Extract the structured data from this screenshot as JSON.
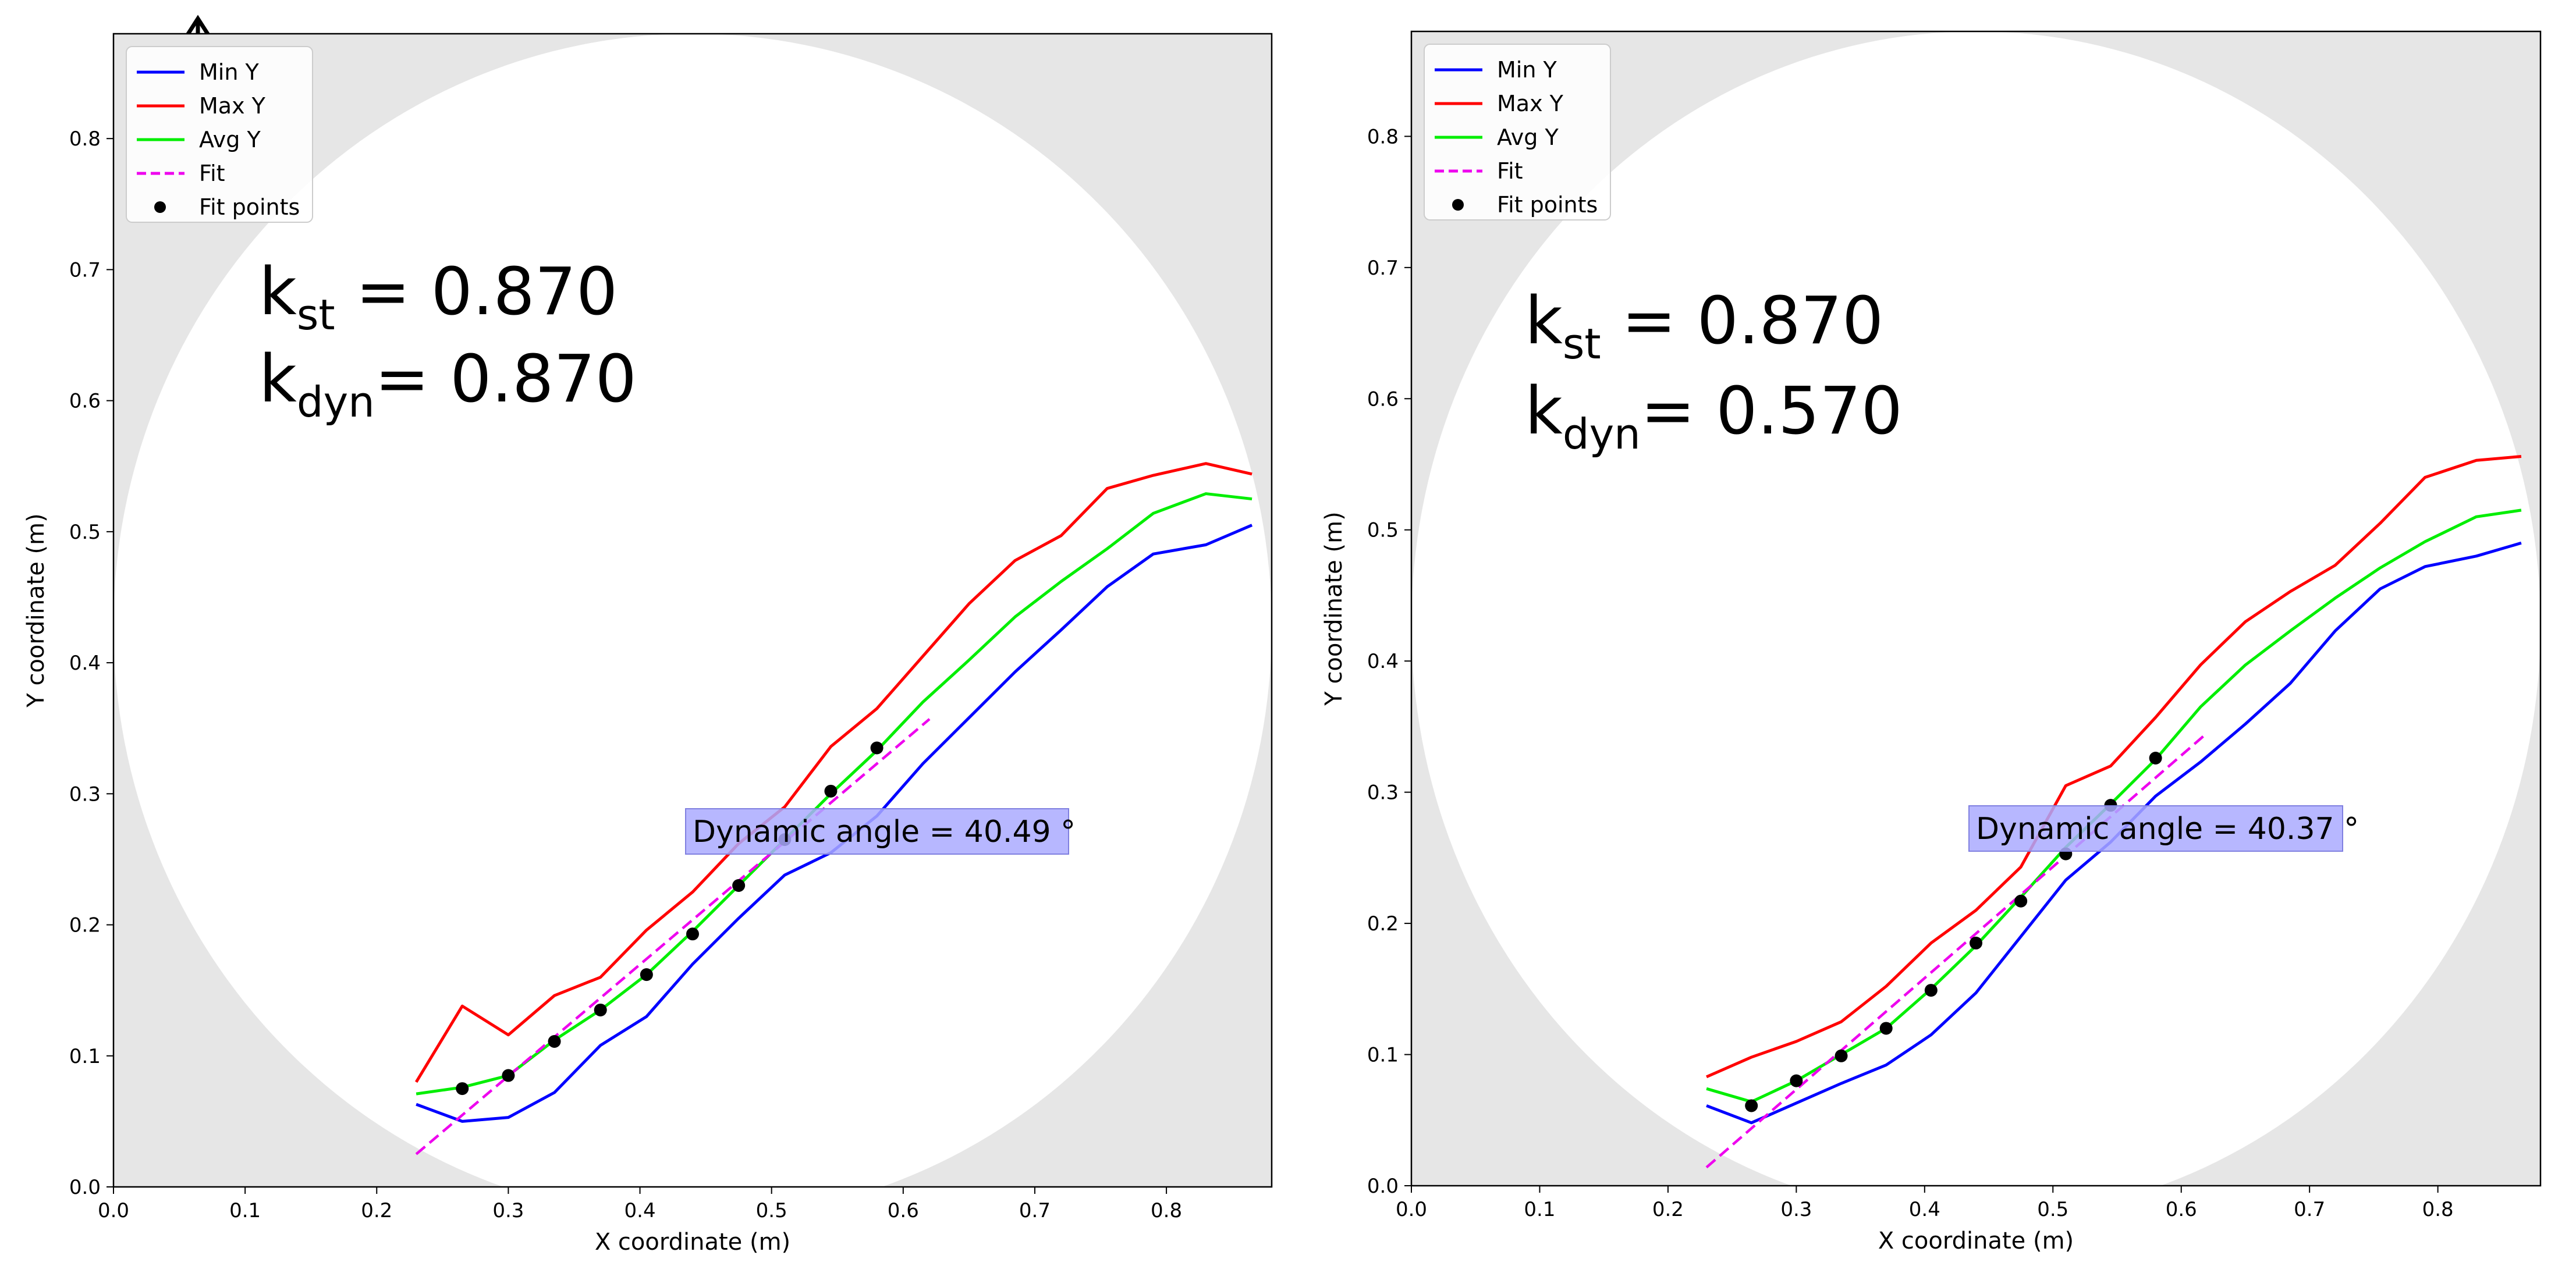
{
  "chart_data": [
    {
      "type": "line",
      "xlabel": "X coordinate (m)",
      "ylabel": "Y coordinate (m)",
      "xlim": [
        0.0,
        0.88
      ],
      "ylim": [
        0.0,
        0.88
      ],
      "xticks": [
        "0.0",
        "0.1",
        "0.2",
        "0.3",
        "0.4",
        "0.5",
        "0.6",
        "0.7",
        "0.8"
      ],
      "yticks": [
        "0.0",
        "0.1",
        "0.2",
        "0.3",
        "0.4",
        "0.5",
        "0.6",
        "0.7",
        "0.8"
      ],
      "legend_position": "top-left",
      "legend": [
        "Min Y",
        "Max Y",
        "Avg Y",
        "Fit",
        "Fit points"
      ],
      "annotation": "Dynamic angle = 40.49 °",
      "k_st": {
        "k": "k",
        "sub": "st",
        "value": " = 0.870"
      },
      "k_dyn": {
        "k": "k",
        "sub": "dyn",
        "value": "= 0.870"
      },
      "colors": {
        "min": "#0000ff",
        "max": "#ff0000",
        "avg": "#00ee00",
        "fit": "#ee00ee",
        "points": "#000000",
        "circle_bg": "#e6e6e6",
        "box": "#aaaaff"
      },
      "series": [
        {
          "name": "Min Y",
          "x": [
            0.23,
            0.265,
            0.3,
            0.335,
            0.37,
            0.405,
            0.44,
            0.475,
            0.51,
            0.545,
            0.58,
            0.615,
            0.65,
            0.685,
            0.72,
            0.755,
            0.79,
            0.83,
            0.865
          ],
          "y": [
            0.063,
            0.05,
            0.053,
            0.072,
            0.108,
            0.13,
            0.17,
            0.205,
            0.238,
            0.255,
            0.283,
            0.323,
            0.358,
            0.393,
            0.425,
            0.458,
            0.483,
            0.49,
            0.505
          ]
        },
        {
          "name": "Max Y",
          "x": [
            0.23,
            0.265,
            0.3,
            0.335,
            0.37,
            0.405,
            0.44,
            0.475,
            0.51,
            0.545,
            0.58,
            0.615,
            0.65,
            0.685,
            0.72,
            0.755,
            0.79,
            0.83,
            0.865
          ],
          "y": [
            0.08,
            0.138,
            0.116,
            0.146,
            0.16,
            0.196,
            0.225,
            0.262,
            0.29,
            0.336,
            0.365,
            0.405,
            0.445,
            0.478,
            0.497,
            0.533,
            0.543,
            0.552,
            0.544
          ]
        },
        {
          "name": "Avg Y",
          "x": [
            0.23,
            0.265,
            0.3,
            0.335,
            0.37,
            0.405,
            0.44,
            0.475,
            0.51,
            0.545,
            0.58,
            0.615,
            0.65,
            0.685,
            0.72,
            0.755,
            0.79,
            0.83,
            0.865
          ],
          "y": [
            0.071,
            0.076,
            0.085,
            0.112,
            0.135,
            0.162,
            0.195,
            0.23,
            0.265,
            0.3,
            0.333,
            0.37,
            0.402,
            0.435,
            0.462,
            0.487,
            0.514,
            0.529,
            0.525
          ]
        }
      ],
      "fit_line": {
        "x": [
          0.23,
          0.62
        ],
        "y": [
          0.025,
          0.357
        ]
      },
      "fit_points": {
        "x": [
          0.265,
          0.3,
          0.335,
          0.37,
          0.405,
          0.44,
          0.475,
          0.51,
          0.545,
          0.58
        ],
        "y": [
          0.075,
          0.085,
          0.111,
          0.135,
          0.162,
          0.193,
          0.23,
          0.265,
          0.302,
          0.335
        ]
      }
    },
    {
      "type": "line",
      "xlabel": "X coordinate (m)",
      "ylabel": "Y coordinate (m)",
      "xlim": [
        0.0,
        0.88
      ],
      "ylim": [
        0.0,
        0.88
      ],
      "xticks": [
        "0.0",
        "0.1",
        "0.2",
        "0.3",
        "0.4",
        "0.5",
        "0.6",
        "0.7",
        "0.8"
      ],
      "yticks": [
        "0.0",
        "0.1",
        "0.2",
        "0.3",
        "0.4",
        "0.5",
        "0.6",
        "0.7",
        "0.8"
      ],
      "legend_position": "top-left",
      "legend": [
        "Min Y",
        "Max Y",
        "Avg Y",
        "Fit",
        "Fit points"
      ],
      "annotation": "Dynamic angle = 40.37 °",
      "k_st": {
        "k": "k",
        "sub": "st",
        "value": " = 0.870"
      },
      "k_dyn": {
        "k": "k",
        "sub": "dyn",
        "value": "= 0.570"
      },
      "colors": {
        "min": "#0000ff",
        "max": "#ff0000",
        "avg": "#00ee00",
        "fit": "#ee00ee",
        "points": "#000000",
        "circle_bg": "#e6e6e6",
        "box": "#aaaaff"
      },
      "series": [
        {
          "name": "Min Y",
          "x": [
            0.23,
            0.265,
            0.3,
            0.335,
            0.37,
            0.405,
            0.44,
            0.475,
            0.51,
            0.545,
            0.58,
            0.615,
            0.65,
            0.685,
            0.72,
            0.755,
            0.79,
            0.83,
            0.865
          ],
          "y": [
            0.061,
            0.048,
            0.063,
            0.078,
            0.092,
            0.115,
            0.147,
            0.19,
            0.233,
            0.262,
            0.297,
            0.323,
            0.352,
            0.383,
            0.423,
            0.455,
            0.472,
            0.48,
            0.49
          ]
        },
        {
          "name": "Max Y",
          "x": [
            0.23,
            0.265,
            0.3,
            0.335,
            0.37,
            0.405,
            0.44,
            0.475,
            0.51,
            0.545,
            0.58,
            0.615,
            0.65,
            0.685,
            0.72,
            0.755,
            0.79,
            0.83,
            0.865
          ],
          "y": [
            0.083,
            0.098,
            0.11,
            0.125,
            0.152,
            0.185,
            0.21,
            0.243,
            0.305,
            0.32,
            0.357,
            0.397,
            0.43,
            0.453,
            0.473,
            0.505,
            0.54,
            0.553,
            0.556
          ]
        },
        {
          "name": "Avg Y",
          "x": [
            0.23,
            0.265,
            0.3,
            0.335,
            0.37,
            0.405,
            0.44,
            0.475,
            0.51,
            0.545,
            0.58,
            0.615,
            0.65,
            0.685,
            0.72,
            0.755,
            0.79,
            0.83,
            0.865
          ],
          "y": [
            0.074,
            0.064,
            0.08,
            0.1,
            0.12,
            0.15,
            0.183,
            0.22,
            0.258,
            0.291,
            0.325,
            0.365,
            0.397,
            0.423,
            0.448,
            0.471,
            0.491,
            0.51,
            0.515
          ]
        }
      ],
      "fit_line": {
        "x": [
          0.23,
          0.62
        ],
        "y": [
          0.014,
          0.345
        ]
      },
      "fit_points": {
        "x": [
          0.265,
          0.3,
          0.335,
          0.37,
          0.405,
          0.44,
          0.475,
          0.51,
          0.545,
          0.58
        ],
        "y": [
          0.061,
          0.08,
          0.099,
          0.12,
          0.149,
          0.185,
          0.217,
          0.253,
          0.29,
          0.326
        ]
      }
    }
  ]
}
